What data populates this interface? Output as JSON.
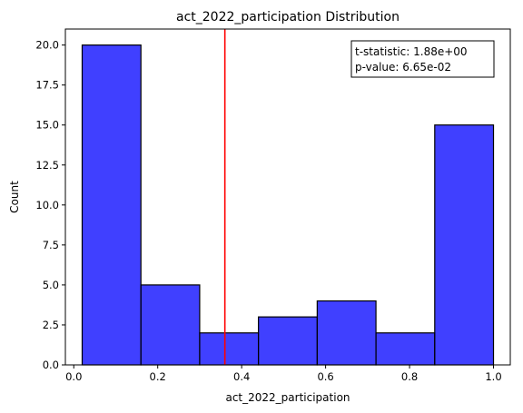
{
  "chart_data": {
    "type": "bar",
    "title": "act_2022_participation Distribution",
    "xlabel": "act_2022_participation",
    "ylabel": "Count",
    "xlim": [
      -0.02,
      1.04
    ],
    "ylim": [
      0,
      21
    ],
    "x_ticks": [
      "0.0",
      "0.2",
      "0.4",
      "0.6",
      "0.8",
      "1.0"
    ],
    "x_tick_values": [
      0.0,
      0.2,
      0.4,
      0.6,
      0.8,
      1.0
    ],
    "y_ticks": [
      "0.0",
      "2.5",
      "5.0",
      "7.5",
      "10.0",
      "12.5",
      "15.0",
      "17.5",
      "20.0"
    ],
    "y_tick_values": [
      0,
      2.5,
      5,
      7.5,
      10,
      12.5,
      15,
      17.5,
      20
    ],
    "bins": [
      {
        "start": 0.02,
        "end": 0.16,
        "count": 20
      },
      {
        "start": 0.16,
        "end": 0.3,
        "count": 5
      },
      {
        "start": 0.3,
        "end": 0.44,
        "count": 2
      },
      {
        "start": 0.44,
        "end": 0.58,
        "count": 3
      },
      {
        "start": 0.58,
        "end": 0.72,
        "count": 4
      },
      {
        "start": 0.72,
        "end": 0.86,
        "count": 2
      },
      {
        "start": 0.86,
        "end": 1.0,
        "count": 15
      }
    ],
    "bar_color": "#0000ff",
    "bar_edge_color": "#000000",
    "reference_line": {
      "x": 0.36,
      "color": "#ff0000"
    },
    "stats_box": {
      "line1": "t-statistic:  1.88e+00",
      "line2": "p-value:  6.65e-02",
      "placement": "top-right"
    },
    "grid": false
  }
}
